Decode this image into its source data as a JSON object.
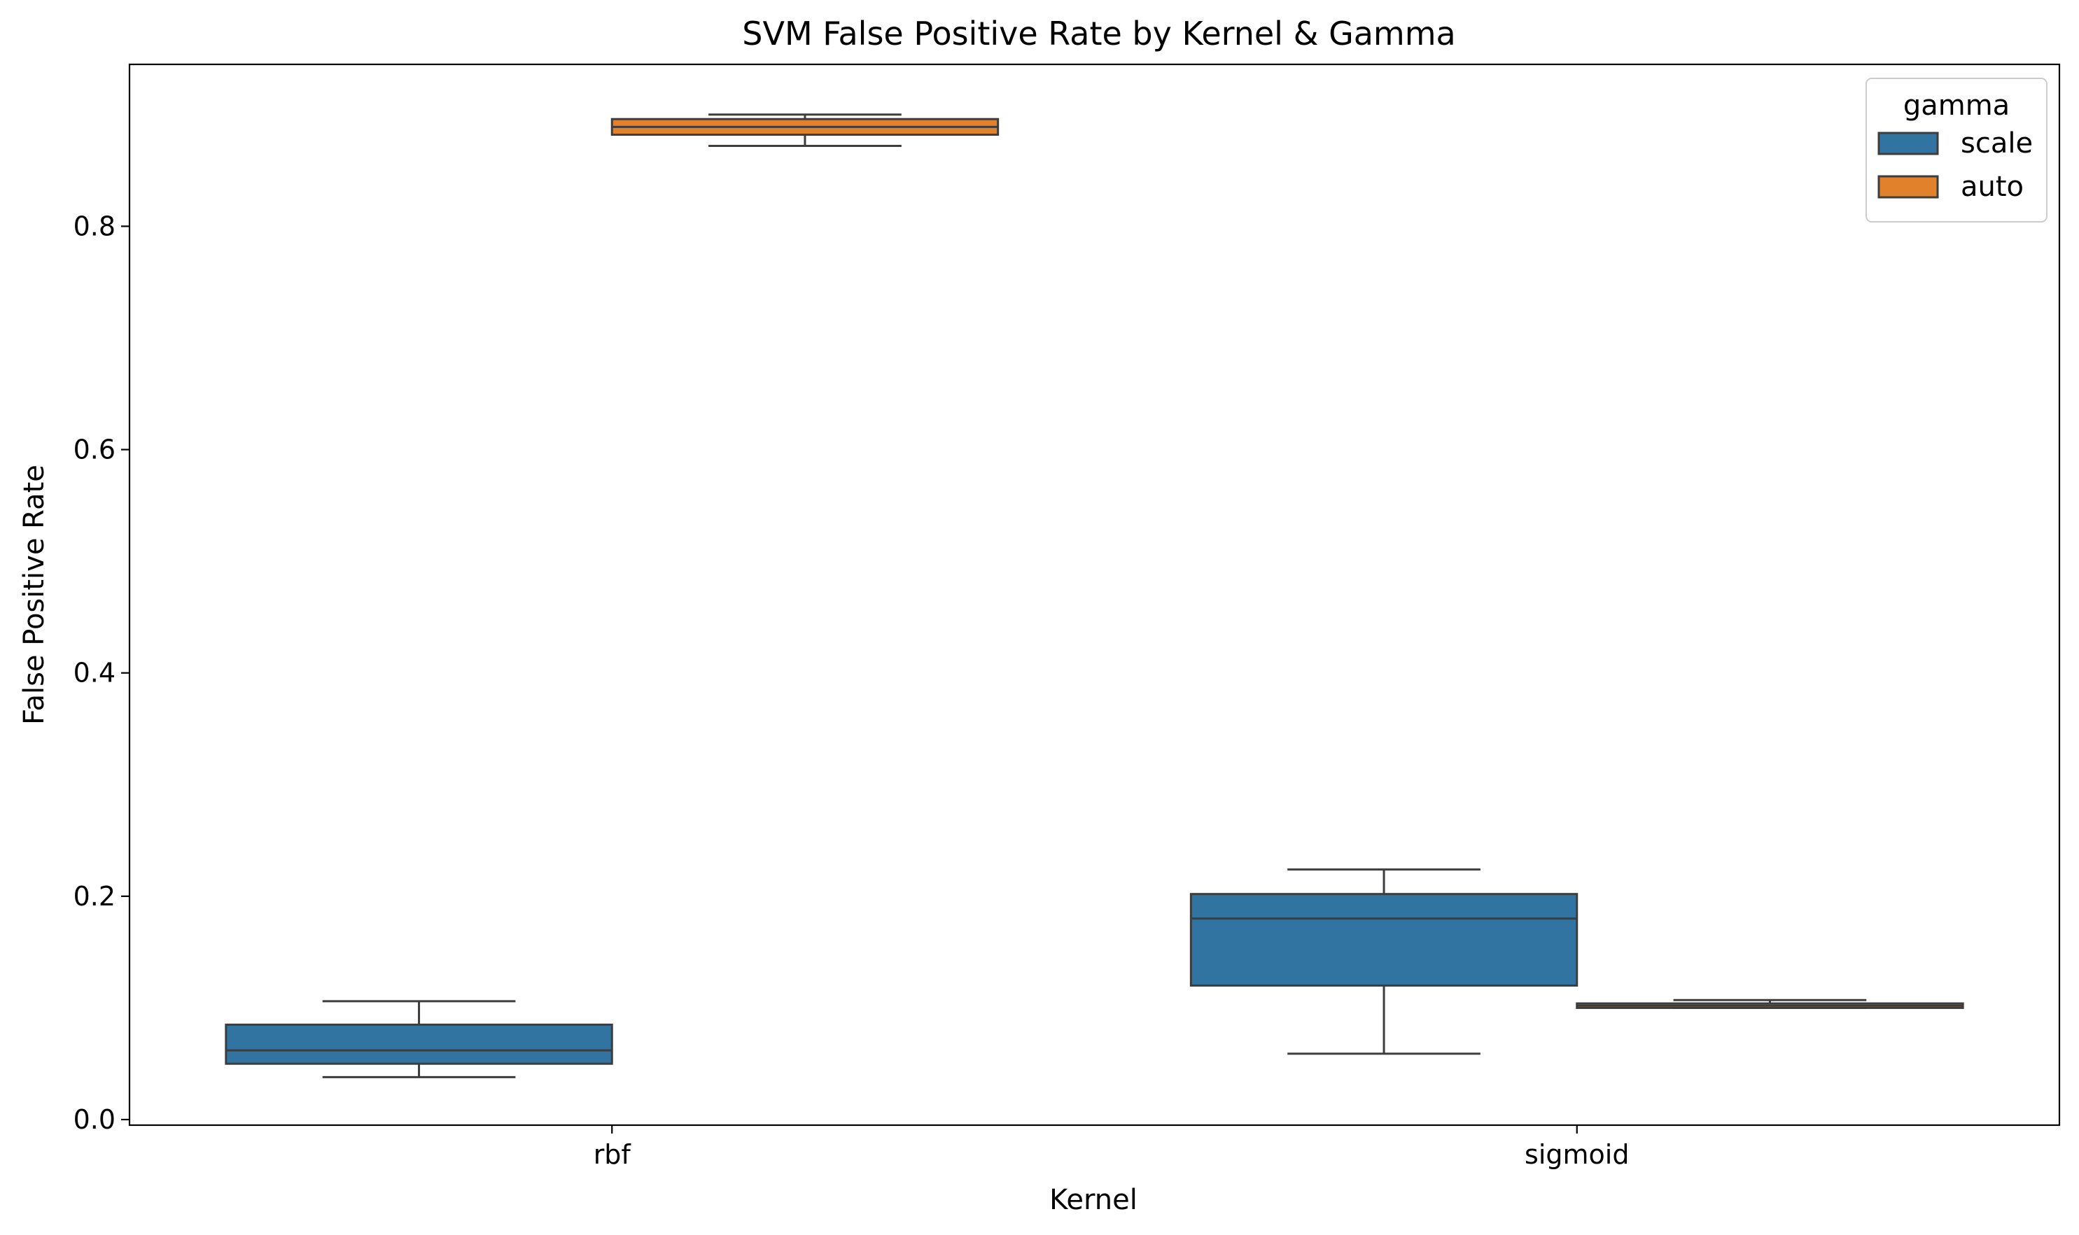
{
  "chart_data": {
    "type": "box",
    "title": "SVM False Positive Rate by Kernel & Gamma",
    "xlabel": "Kernel",
    "ylabel": "False Positive Rate",
    "categories": [
      "rbf",
      "sigmoid"
    ],
    "ylim": [
      -0.005,
      0.945
    ],
    "yticks": [
      0.0,
      0.2,
      0.4,
      0.6,
      0.8
    ],
    "ytick_labels": [
      "0.0",
      "0.2",
      "0.4",
      "0.6",
      "0.8"
    ],
    "legend": {
      "title": "gamma",
      "position": "top-right"
    },
    "grid": false,
    "series": [
      {
        "name": "scale",
        "color": "#3274a1",
        "boxes": [
          {
            "category": "rbf",
            "whisker_low": 0.038,
            "q1": 0.05,
            "median": 0.062,
            "q3": 0.085,
            "whisker_high": 0.106
          },
          {
            "category": "sigmoid",
            "whisker_low": 0.059,
            "q1": 0.12,
            "median": 0.18,
            "q3": 0.202,
            "whisker_high": 0.224
          }
        ]
      },
      {
        "name": "auto",
        "color": "#e1812c",
        "boxes": [
          {
            "category": "rbf",
            "whisker_low": 0.872,
            "q1": 0.882,
            "median": 0.889,
            "q3": 0.896,
            "whisker_high": 0.9
          },
          {
            "category": "sigmoid",
            "whisker_low": 0.1,
            "q1": 0.1,
            "median": 0.102,
            "q3": 0.104,
            "whisker_high": 0.107
          }
        ]
      }
    ]
  }
}
